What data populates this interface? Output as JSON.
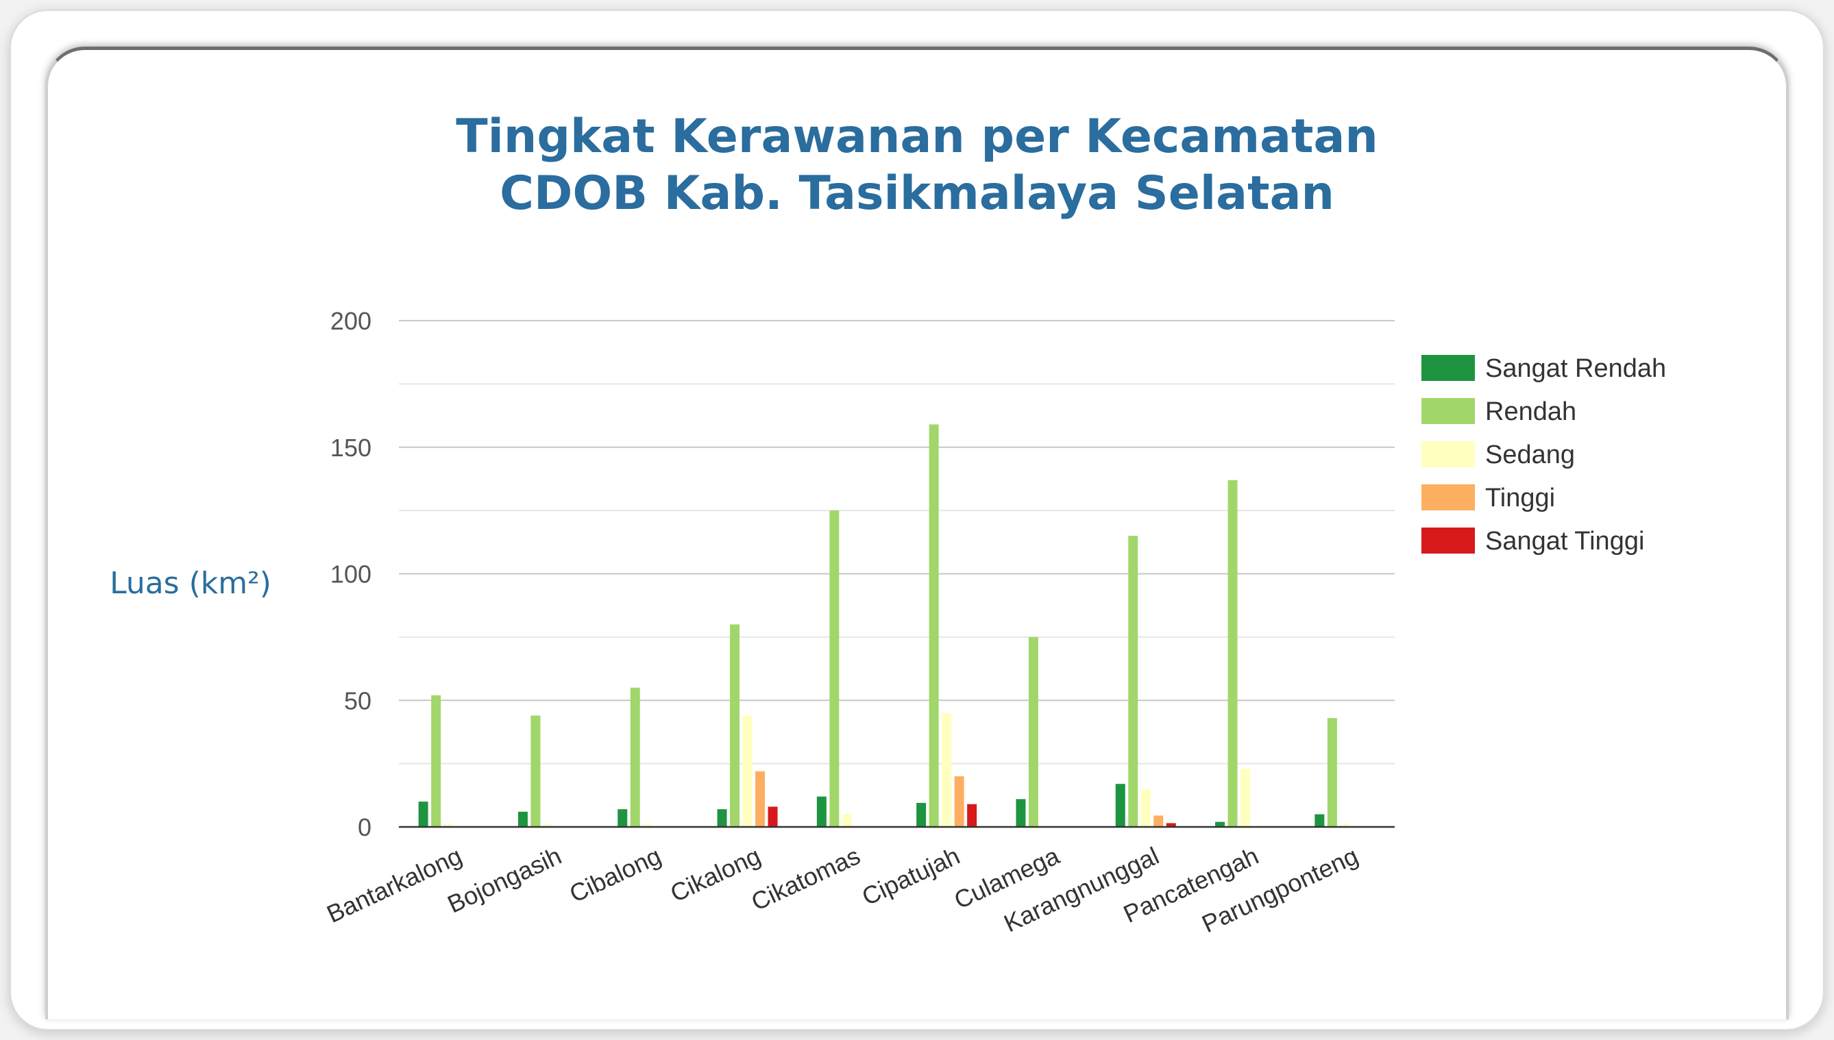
{
  "chart_data": {
    "type": "bar",
    "title": [
      "Tingkat Kerawanan per Kecamatan",
      "CDOB Kab. Tasikmalaya Selatan"
    ],
    "ylabel": "Luas (km²)",
    "xlabel": "",
    "ylim": [
      0,
      200
    ],
    "yticks": [
      0,
      50,
      100,
      150,
      200
    ],
    "grid": true,
    "legend_position": "right",
    "categories": [
      "Bantarkalong",
      "Bojongasih",
      "Cibalong",
      "Cikalong",
      "Cikatomas",
      "Cipatujah",
      "Culamega",
      "Karangnunggal",
      "Pancatengah",
      "Parungponteng"
    ],
    "series": [
      {
        "name": "Sangat Rendah",
        "color": "#1e9441",
        "values": [
          10,
          6,
          7,
          7,
          12,
          9.5,
          11,
          17,
          2,
          5
        ]
      },
      {
        "name": "Rendah",
        "color": "#a1d76a",
        "values": [
          52,
          44,
          55,
          80,
          125,
          159,
          75,
          115,
          137,
          43
        ]
      },
      {
        "name": "Sedang",
        "color": "#ffffbf",
        "values": [
          1,
          1,
          1,
          44,
          5,
          45,
          0,
          15,
          23,
          1
        ]
      },
      {
        "name": "Tinggi",
        "color": "#fdae61",
        "values": [
          0,
          0,
          0,
          22,
          0,
          20,
          0,
          4.5,
          0,
          0
        ]
      },
      {
        "name": "Sangat Tinggi",
        "color": "#d7191c",
        "values": [
          0,
          0,
          0,
          8,
          0,
          9,
          0,
          1.5,
          0,
          0
        ]
      }
    ]
  }
}
